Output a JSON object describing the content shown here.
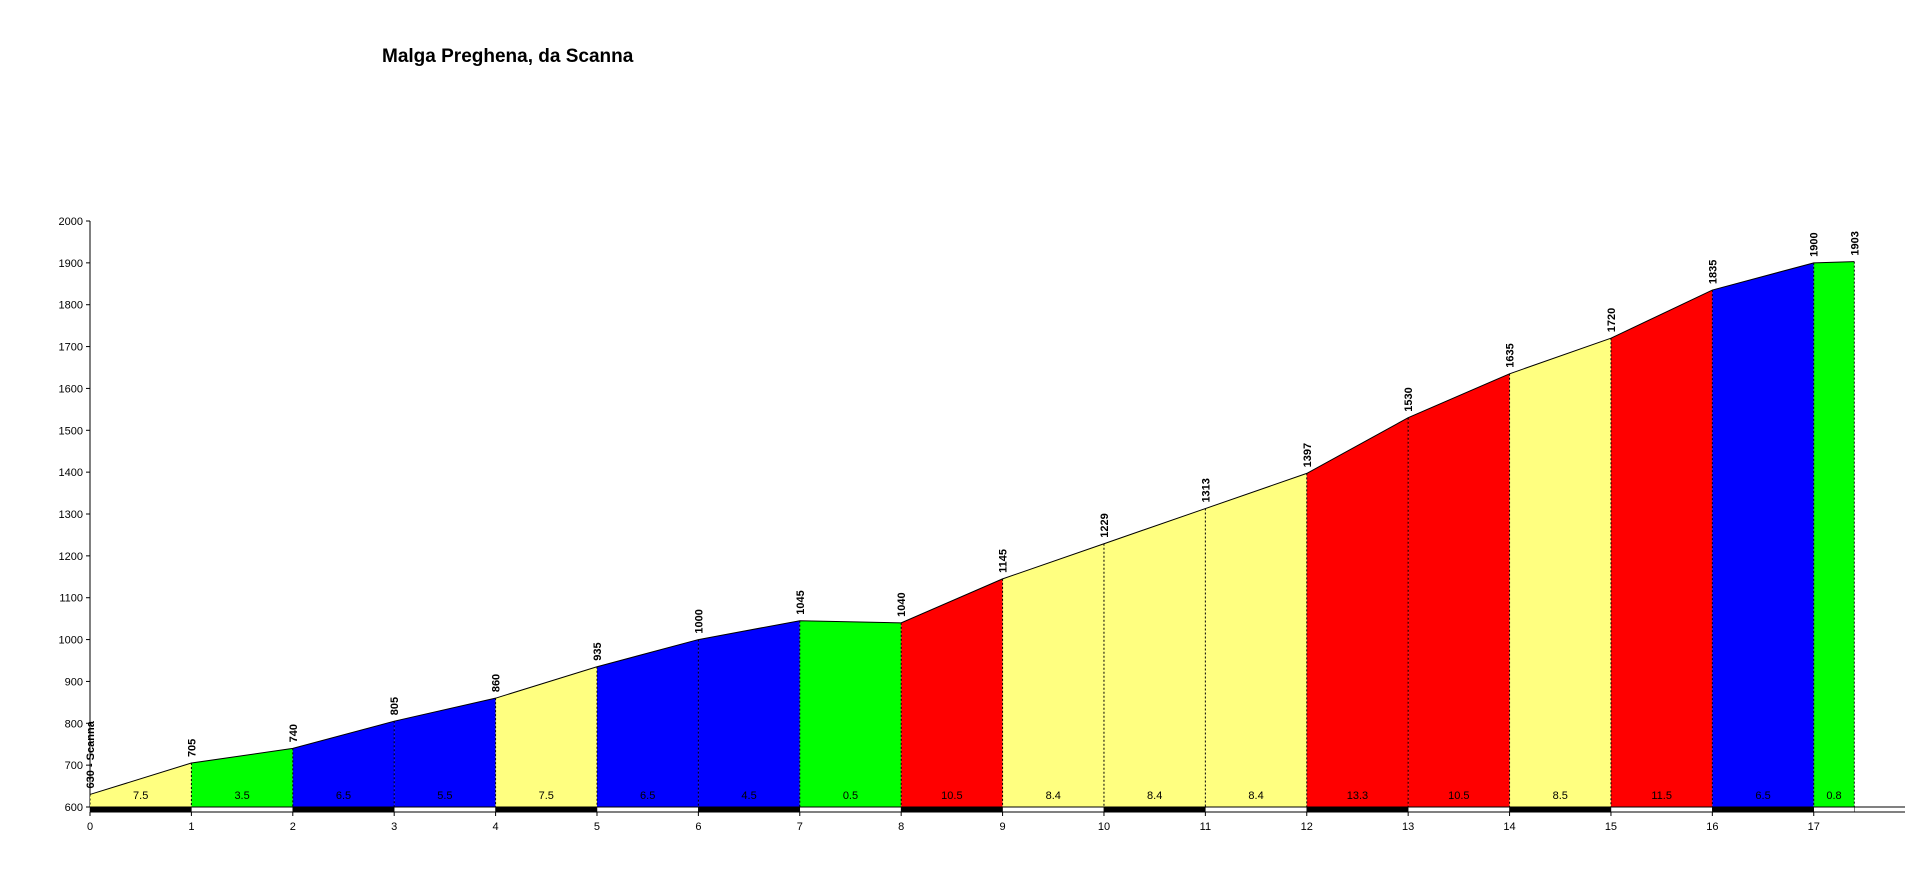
{
  "chart_data": {
    "type": "elevation_profile",
    "title": "Malga Preghena, da Scanna",
    "x": [
      0,
      1,
      2,
      3,
      4,
      5,
      6,
      7,
      8,
      9,
      10,
      11,
      12,
      13,
      14,
      15,
      16,
      17,
      17.4
    ],
    "values": [
      630,
      705,
      740,
      805,
      860,
      935,
      1000,
      1045,
      1040,
      1145,
      1229,
      1313,
      1397,
      1530,
      1635,
      1720,
      1835,
      1900,
      1903
    ],
    "value_labels": [
      "630 - Scanna",
      "705",
      "740",
      "805",
      "860",
      "935",
      "1000",
      "1045",
      "1040",
      "1145",
      "1229",
      "1313",
      "1397",
      "1530",
      "1635",
      "1720",
      "1835",
      "1900",
      "1903"
    ],
    "grades": [
      7.5,
      3.5,
      6.5,
      5.5,
      7.5,
      6.5,
      4.5,
      0.5,
      10.5,
      8.4,
      8.4,
      8.4,
      13.3,
      10.5,
      8.5,
      11.5,
      6.5,
      0.8
    ],
    "colors": [
      "#ffff80",
      "#00ff00",
      "#0000ff",
      "#0000ff",
      "#ffff80",
      "#0000ff",
      "#0000ff",
      "#00ff00",
      "#ff0000",
      "#ffff80",
      "#ffff80",
      "#ffff80",
      "#ff0000",
      "#ff0000",
      "#ffff80",
      "#ff0000",
      "#0000ff",
      "#00ff00"
    ],
    "xlim": [
      0,
      17.9
    ],
    "xticks": [
      0,
      1,
      2,
      3,
      4,
      5,
      6,
      7,
      8,
      9,
      10,
      11,
      12,
      13,
      14,
      15,
      16,
      17
    ],
    "ylim": [
      600,
      2000
    ],
    "yticks": [
      600,
      700,
      800,
      900,
      1000,
      1100,
      1200,
      1300,
      1400,
      1500,
      1600,
      1700,
      1800,
      1900,
      2000
    ]
  }
}
